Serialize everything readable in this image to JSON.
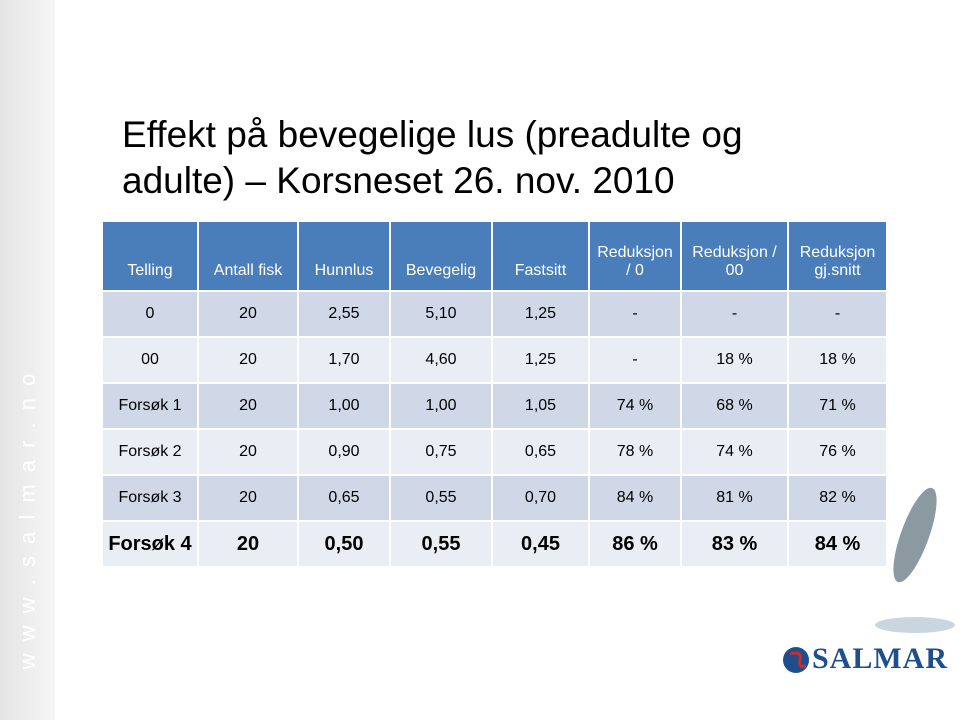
{
  "sidebar_url": "w w w . s a l m a r . n o",
  "title": "Effekt på bevegelige lus (preadulte og adulte) – Korsneset 26. nov. 2010",
  "table": {
    "header": [
      "Telling",
      "Antall fisk",
      "Hunnlus",
      "Bevegelig",
      "Fastsitt",
      "Reduksjon / 0",
      "Reduksjon / 00",
      "Reduksjon gj.snitt"
    ],
    "rows": [
      [
        "0",
        "20",
        "2,55",
        "5,10",
        "1,25",
        "-",
        "-",
        "-"
      ],
      [
        "00",
        "20",
        "1,70",
        "4,60",
        "1,25",
        "-",
        "18 %",
        "18 %"
      ],
      [
        "Forsøk 1",
        "20",
        "1,00",
        "1,00",
        "1,05",
        "74 %",
        "68 %",
        "71 %"
      ],
      [
        "Forsøk 2",
        "20",
        "0,90",
        "0,75",
        "0,65",
        "78 %",
        "74 %",
        "76 %"
      ],
      [
        "Forsøk 3",
        "20",
        "0,65",
        "0,55",
        "0,70",
        "84 %",
        "81 %",
        "82 %"
      ],
      [
        "Forsøk 4",
        "20",
        "0,50",
        "0,55",
        "0,45",
        "86 %",
        "83 %",
        "84 %"
      ]
    ]
  },
  "logo": "SALMAR"
}
